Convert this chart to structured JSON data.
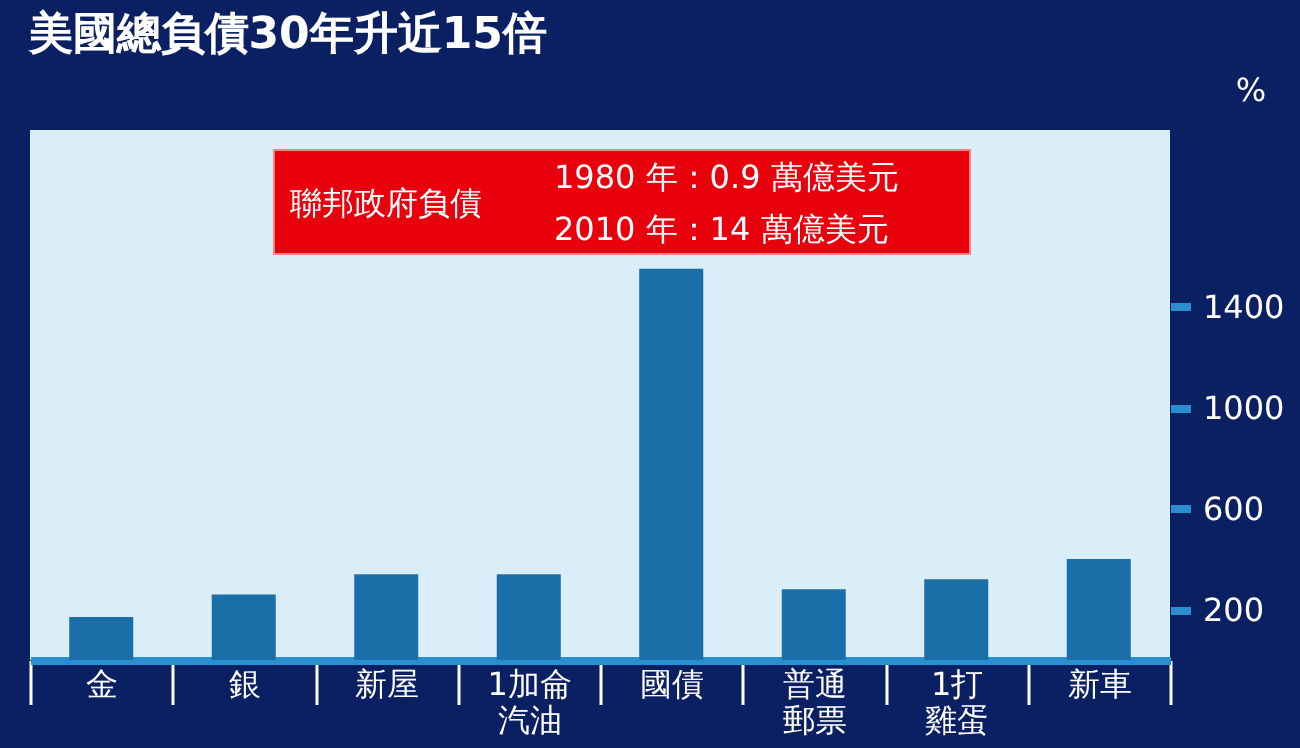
{
  "chart_data": {
    "type": "bar",
    "title": "美國總負債30年升近15倍",
    "categories": [
      "金",
      "銀",
      "新屋",
      "1加侖汽油",
      "國債",
      "普通郵票",
      "1打雞蛋",
      "新車"
    ],
    "values": [
      170,
      260,
      340,
      340,
      1550,
      280,
      320,
      400
    ],
    "color": "#1a6fa8",
    "ylabel": "%",
    "ylim": [
      0,
      2100
    ],
    "yticks": [
      200,
      600,
      1000,
      1400
    ],
    "annotations": [
      "聯邦政府負債",
      "1980 年：0.9 萬億美元",
      "2010 年：14 萬億美元"
    ],
    "grid": false
  }
}
